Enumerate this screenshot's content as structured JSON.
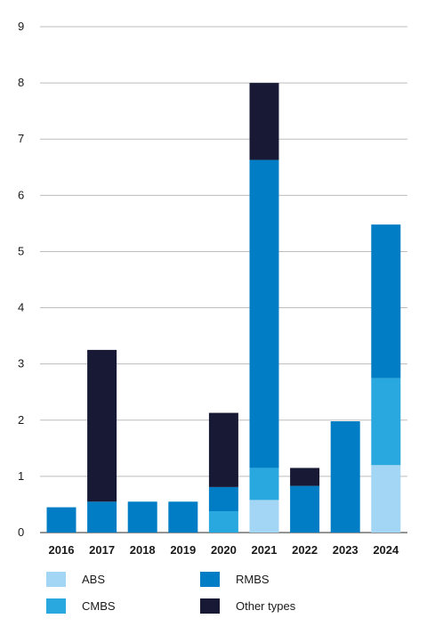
{
  "chart_data": {
    "type": "bar",
    "stacked": true,
    "categories": [
      "2016",
      "2017",
      "2018",
      "2019",
      "2020",
      "2021",
      "2022",
      "2023",
      "2024"
    ],
    "series": [
      {
        "name": "ABS",
        "color": "#a3d5f5",
        "values": [
          0,
          0,
          0,
          0,
          0,
          0.58,
          0,
          0,
          1.2
        ]
      },
      {
        "name": "CMBS",
        "color": "#29a8df",
        "values": [
          0,
          0,
          0,
          0,
          0.38,
          0.57,
          0,
          0,
          1.55
        ]
      },
      {
        "name": "RMBS",
        "color": "#007dc5",
        "values": [
          0.45,
          0.55,
          0.55,
          0.55,
          0.43,
          5.48,
          0.83,
          1.98,
          2.73
        ]
      },
      {
        "name": "Other types",
        "color": "#181a35",
        "values": [
          0,
          2.7,
          0,
          0,
          1.32,
          1.37,
          0.32,
          0,
          0
        ]
      }
    ],
    "yticks": [
      "0",
      "1",
      "2",
      "3",
      "4",
      "5",
      "6",
      "7",
      "8",
      "9"
    ],
    "ylim": [
      0,
      9
    ],
    "grid": true,
    "legend_position": "bottom"
  }
}
